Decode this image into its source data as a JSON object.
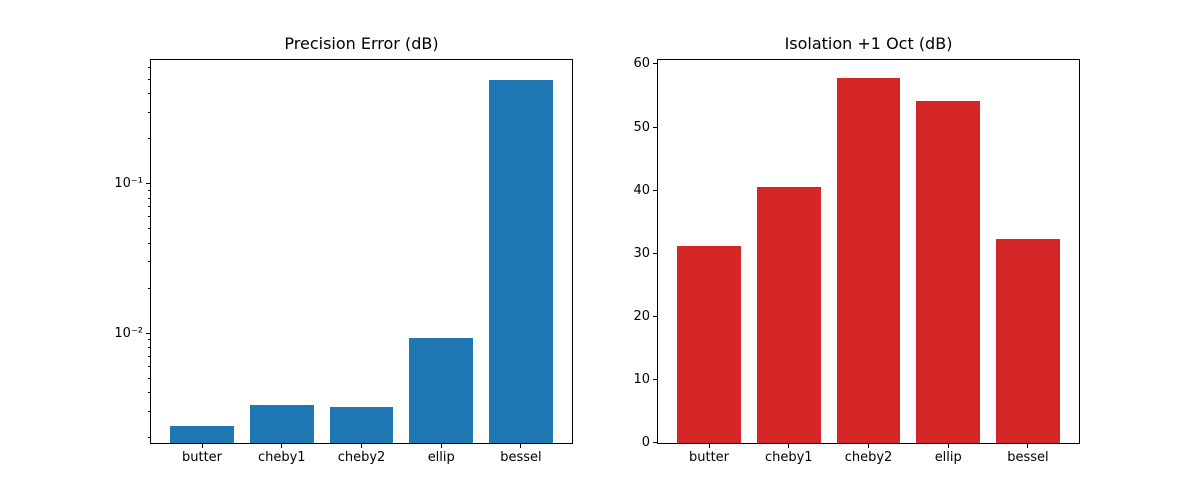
{
  "figure": {
    "background": "#ffffff",
    "frame_color": "#000000",
    "text_color": "#000000"
  },
  "chart_data": [
    {
      "type": "bar",
      "title": "Precision Error (dB)",
      "categories": [
        "butter",
        "cheby1",
        "cheby2",
        "ellip",
        "bessel"
      ],
      "values": [
        0.0024,
        0.0033,
        0.0032,
        0.0093,
        0.5
      ],
      "bar_color": "#1f77b4",
      "yscale": "log",
      "ylim": [
        0.00185,
        0.68
      ],
      "xlim": [
        -0.64,
        4.64
      ],
      "bar_width": 0.8,
      "grid": false,
      "yticks": [
        {
          "value": 0.01,
          "label": "10⁻²"
        },
        {
          "value": 0.1,
          "label": "10⁻¹"
        }
      ],
      "minor_yticks": [
        0.002,
        0.003,
        0.004,
        0.005,
        0.006,
        0.007,
        0.008,
        0.009,
        0.02,
        0.03,
        0.04,
        0.05,
        0.06,
        0.07,
        0.08,
        0.09,
        0.2,
        0.3,
        0.4,
        0.5,
        0.6
      ]
    },
    {
      "type": "bar",
      "title": "Isolation +1 Oct (dB)",
      "categories": [
        "butter",
        "cheby1",
        "cheby2",
        "ellip",
        "bessel"
      ],
      "values": [
        31.2,
        40.5,
        57.8,
        54.2,
        32.4
      ],
      "bar_color": "#d62728",
      "yscale": "linear",
      "ylim": [
        0,
        60.7
      ],
      "xlim": [
        -0.64,
        4.64
      ],
      "bar_width": 0.8,
      "grid": false,
      "yticks": [
        {
          "value": 0,
          "label": "0"
        },
        {
          "value": 10,
          "label": "10"
        },
        {
          "value": 20,
          "label": "20"
        },
        {
          "value": 30,
          "label": "30"
        },
        {
          "value": 40,
          "label": "40"
        },
        {
          "value": 50,
          "label": "50"
        },
        {
          "value": 60,
          "label": "60"
        }
      ],
      "minor_yticks": []
    }
  ]
}
